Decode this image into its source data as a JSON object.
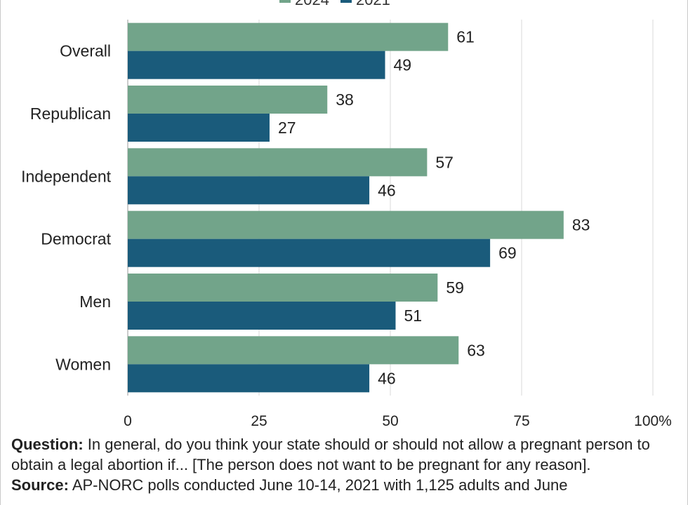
{
  "chart_data": {
    "type": "bar",
    "orientation": "horizontal",
    "categories": [
      "Overall",
      "Republican",
      "Independent",
      "Democrat",
      "Men",
      "Women"
    ],
    "series": [
      {
        "name": "2024",
        "color": "#72a48a",
        "values": [
          61,
          38,
          57,
          83,
          59,
          63
        ]
      },
      {
        "name": "2021",
        "color": "#1a5b7b",
        "values": [
          49,
          27,
          46,
          69,
          51,
          46
        ]
      }
    ],
    "xlim": [
      0,
      100
    ],
    "xticks": [
      "0",
      "25",
      "50",
      "75",
      "100%"
    ],
    "grid": true,
    "legend_position": "top"
  },
  "footnote": {
    "question_label": "Question:",
    "question_text": "In general, do you think your state should or should not allow a pregnant person to obtain a legal abortion if... [The person does not want to be pregnant for any reason].",
    "source_label": "Source:",
    "source_text": "AP-NORC polls conducted June 10-14, 2021 with 1,125 adults and June"
  }
}
